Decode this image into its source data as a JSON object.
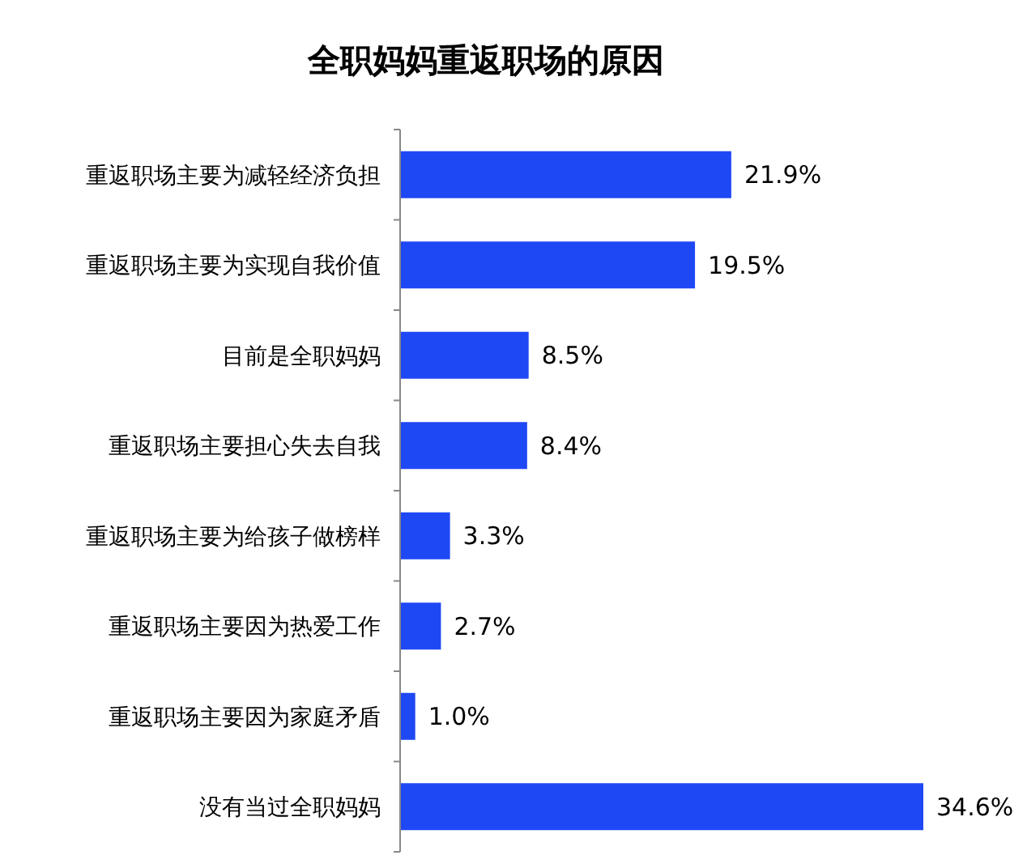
{
  "chart_data": {
    "type": "bar",
    "orientation": "horizontal",
    "title": "全职妈妈重返职场的原因",
    "categories": [
      "重返职场主要为减轻经济负担",
      "重返职场主要为实现自我价值",
      "目前是全职妈妈",
      "重返职场主要担心失去自我",
      "重返职场主要为给孩子做榜样",
      "重返职场主要因为热爱工作",
      "重返职场主要因为家庭矛盾",
      "没有当过全职妈妈"
    ],
    "values": [
      21.9,
      19.5,
      8.5,
      8.4,
      3.3,
      2.7,
      1.0,
      34.6
    ],
    "value_labels": [
      "21.9%",
      "19.5%",
      "8.5%",
      "8.4%",
      "3.3%",
      "2.7%",
      "1.0%",
      "34.6%"
    ],
    "color": "#1f48f5",
    "grid": false
  }
}
